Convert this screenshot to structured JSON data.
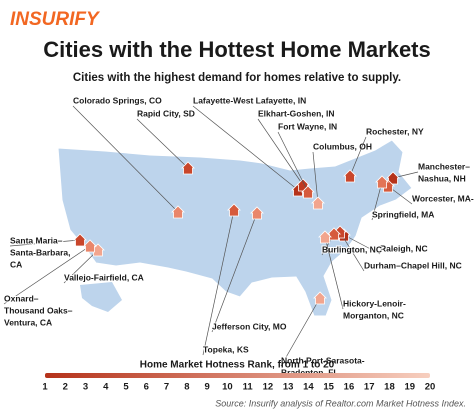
{
  "header": {
    "brand": "INSURIFY",
    "title": "Cities with the Hottest Home Markets",
    "subtitle": "Cities with the highest demand for homes relative to supply."
  },
  "cities": [
    {
      "lines": [
        "Colorado Springs, CO"
      ]
    },
    {
      "lines": [
        "Rapid City, SD"
      ]
    },
    {
      "lines": [
        "Lafayette-West Lafayette, IN"
      ]
    },
    {
      "lines": [
        "Elkhart-Goshen, IN"
      ]
    },
    {
      "lines": [
        "Fort Wayne, IN"
      ]
    },
    {
      "lines": [
        "Columbus, OH"
      ]
    },
    {
      "lines": [
        "Rochester, NY"
      ]
    },
    {
      "lines": [
        "Manchester–",
        "Nashua, NH"
      ]
    },
    {
      "lines": [
        "Worcester, MA-CT"
      ]
    },
    {
      "lines": [
        "Springfield, MA"
      ]
    },
    {
      "lines": [
        "Raleigh, NC"
      ]
    },
    {
      "lines": [
        "Durham–Chapel Hill, NC"
      ]
    },
    {
      "lines": [
        "Burlington, NC"
      ]
    },
    {
      "lines": [
        "Hickory-Lenoir-",
        "Morganton, NC"
      ]
    },
    {
      "lines": [
        "North Port-Sarasota-",
        "Bradenton, FL"
      ]
    },
    {
      "lines": [
        "Jefferson City, MO"
      ]
    },
    {
      "lines": [
        "Topeka, KS"
      ]
    },
    {
      "lines": [
        "Santa Maria–",
        "Santa-Barbara,",
        "CA"
      ]
    },
    {
      "lines": [
        "Vallejo-Fairfield, CA"
      ]
    },
    {
      "lines": [
        "Oxnard–",
        "Thousand Oaks–",
        "Ventura, CA"
      ]
    }
  ],
  "legend": {
    "title": "Home Market Hotness Rank, from 1 to 20",
    "ticks": [
      1,
      2,
      3,
      4,
      5,
      6,
      7,
      8,
      9,
      10,
      11,
      12,
      13,
      14,
      15,
      16,
      17,
      18,
      19,
      20
    ],
    "colors": [
      "#b5321a",
      "#f7cfbf"
    ]
  },
  "source": "Source: Insurify analysis of Realtor.com Market Hotness Index."
}
